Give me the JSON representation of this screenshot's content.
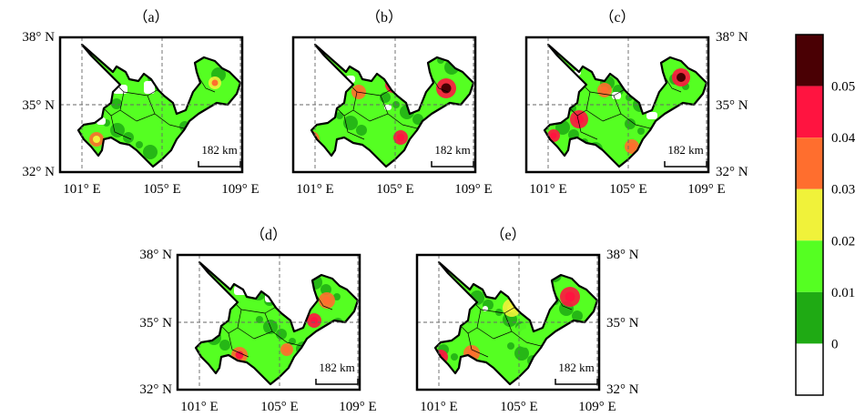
{
  "panels": [
    {
      "id": "a",
      "title": "（a）"
    },
    {
      "id": "b",
      "title": "（b）"
    },
    {
      "id": "c",
      "title": "（c）"
    },
    {
      "id": "d",
      "title": "（d）"
    },
    {
      "id": "e",
      "title": "（e）"
    }
  ],
  "axes": {
    "lat_labels": [
      "38° N",
      "35° N",
      "32° N"
    ],
    "lon_labels": [
      "101° E",
      "105° E",
      "109° E"
    ]
  },
  "scale_bar": {
    "label": "182 km"
  },
  "colorbar": {
    "colors": [
      "#ffffff",
      "#1faa14",
      "#55ff22",
      "#f0f23a",
      "#ff6e2e",
      "#ff1440",
      "#4a0004"
    ],
    "labels": [
      "0",
      "0.01",
      "0.02",
      "0.03",
      "0.04",
      "0.05"
    ]
  }
}
